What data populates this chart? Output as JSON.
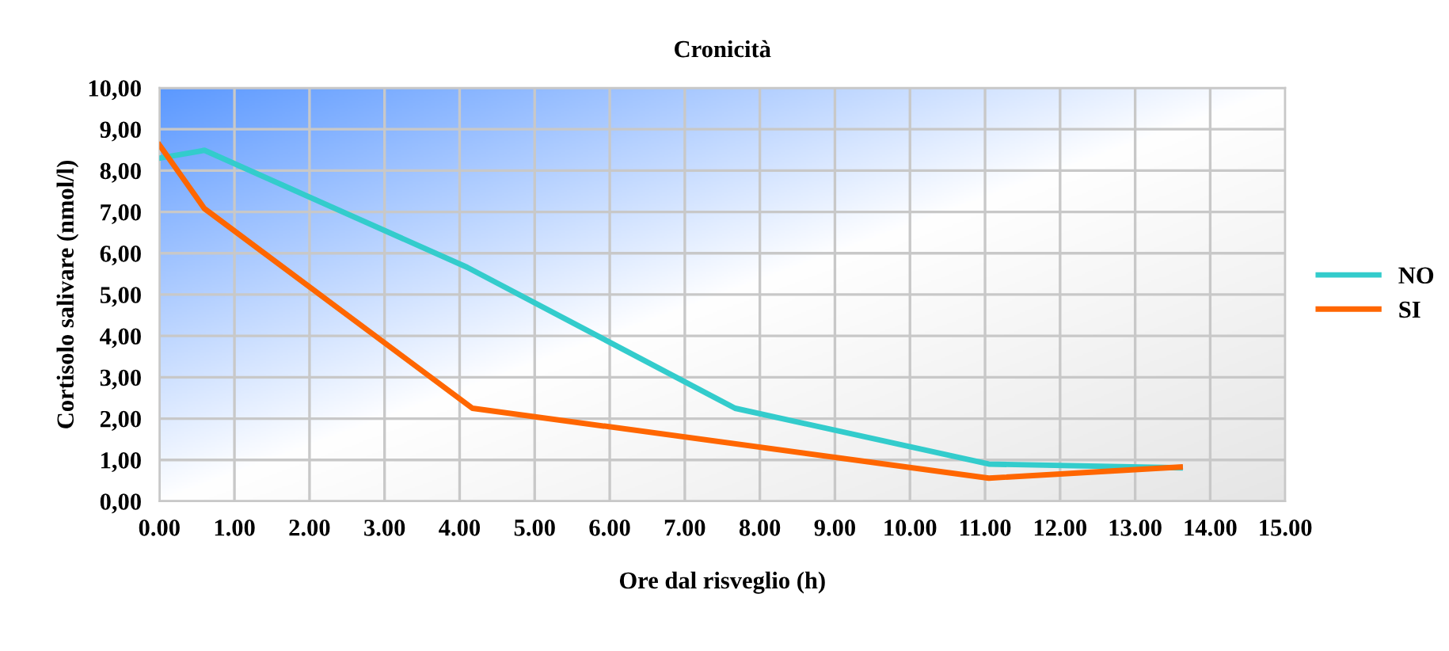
{
  "chart_data": {
    "type": "line",
    "title": "Cronicità",
    "xlabel": "Ore dal risveglio (h)",
    "ylabel": "Cortisolo salivare (nmol/l)",
    "series": [
      {
        "name": "NO",
        "color": "#33cccc",
        "x": [
          0,
          0.6,
          4.1,
          7.67,
          11.05,
          13.6
        ],
        "values": [
          8.3,
          8.49,
          5.66,
          2.25,
          0.9,
          0.81
        ]
      },
      {
        "name": "SI",
        "color": "#ff6600",
        "x": [
          0,
          0.6,
          4.17,
          11.05,
          13.6
        ],
        "values": [
          8.62,
          7.08,
          2.25,
          0.56,
          0.83
        ]
      }
    ],
    "xlim": [
      0,
      15
    ],
    "ylim": [
      0,
      10
    ],
    "xticks": [
      {
        "value": 0,
        "label": "0.00"
      },
      {
        "value": 1,
        "label": "1.00"
      },
      {
        "value": 2,
        "label": "2.00"
      },
      {
        "value": 3,
        "label": "3.00"
      },
      {
        "value": 4,
        "label": "4.00"
      },
      {
        "value": 5,
        "label": "5.00"
      },
      {
        "value": 6,
        "label": "6.00"
      },
      {
        "value": 7,
        "label": "7.00"
      },
      {
        "value": 8,
        "label": "8.00"
      },
      {
        "value": 9,
        "label": "9.00"
      },
      {
        "value": 10,
        "label": "10.00"
      },
      {
        "value": 11,
        "label": "11.00"
      },
      {
        "value": 12,
        "label": "12.00"
      },
      {
        "value": 13,
        "label": "13.00"
      },
      {
        "value": 14,
        "label": "14.00"
      },
      {
        "value": 15,
        "label": "15.00"
      }
    ],
    "yticks": [
      {
        "value": 0,
        "label": "0,00"
      },
      {
        "value": 1,
        "label": "1,00"
      },
      {
        "value": 2,
        "label": "2,00"
      },
      {
        "value": 3,
        "label": "3,00"
      },
      {
        "value": 4,
        "label": "4,00"
      },
      {
        "value": 5,
        "label": "5,00"
      },
      {
        "value": 6,
        "label": "6,00"
      },
      {
        "value": 7,
        "label": "7,00"
      },
      {
        "value": 8,
        "label": "8,00"
      },
      {
        "value": 9,
        "label": "9,00"
      },
      {
        "value": 10,
        "label": "10,00"
      }
    ],
    "grid": true,
    "legend": "right",
    "marker": "none",
    "line_style": "solid"
  }
}
